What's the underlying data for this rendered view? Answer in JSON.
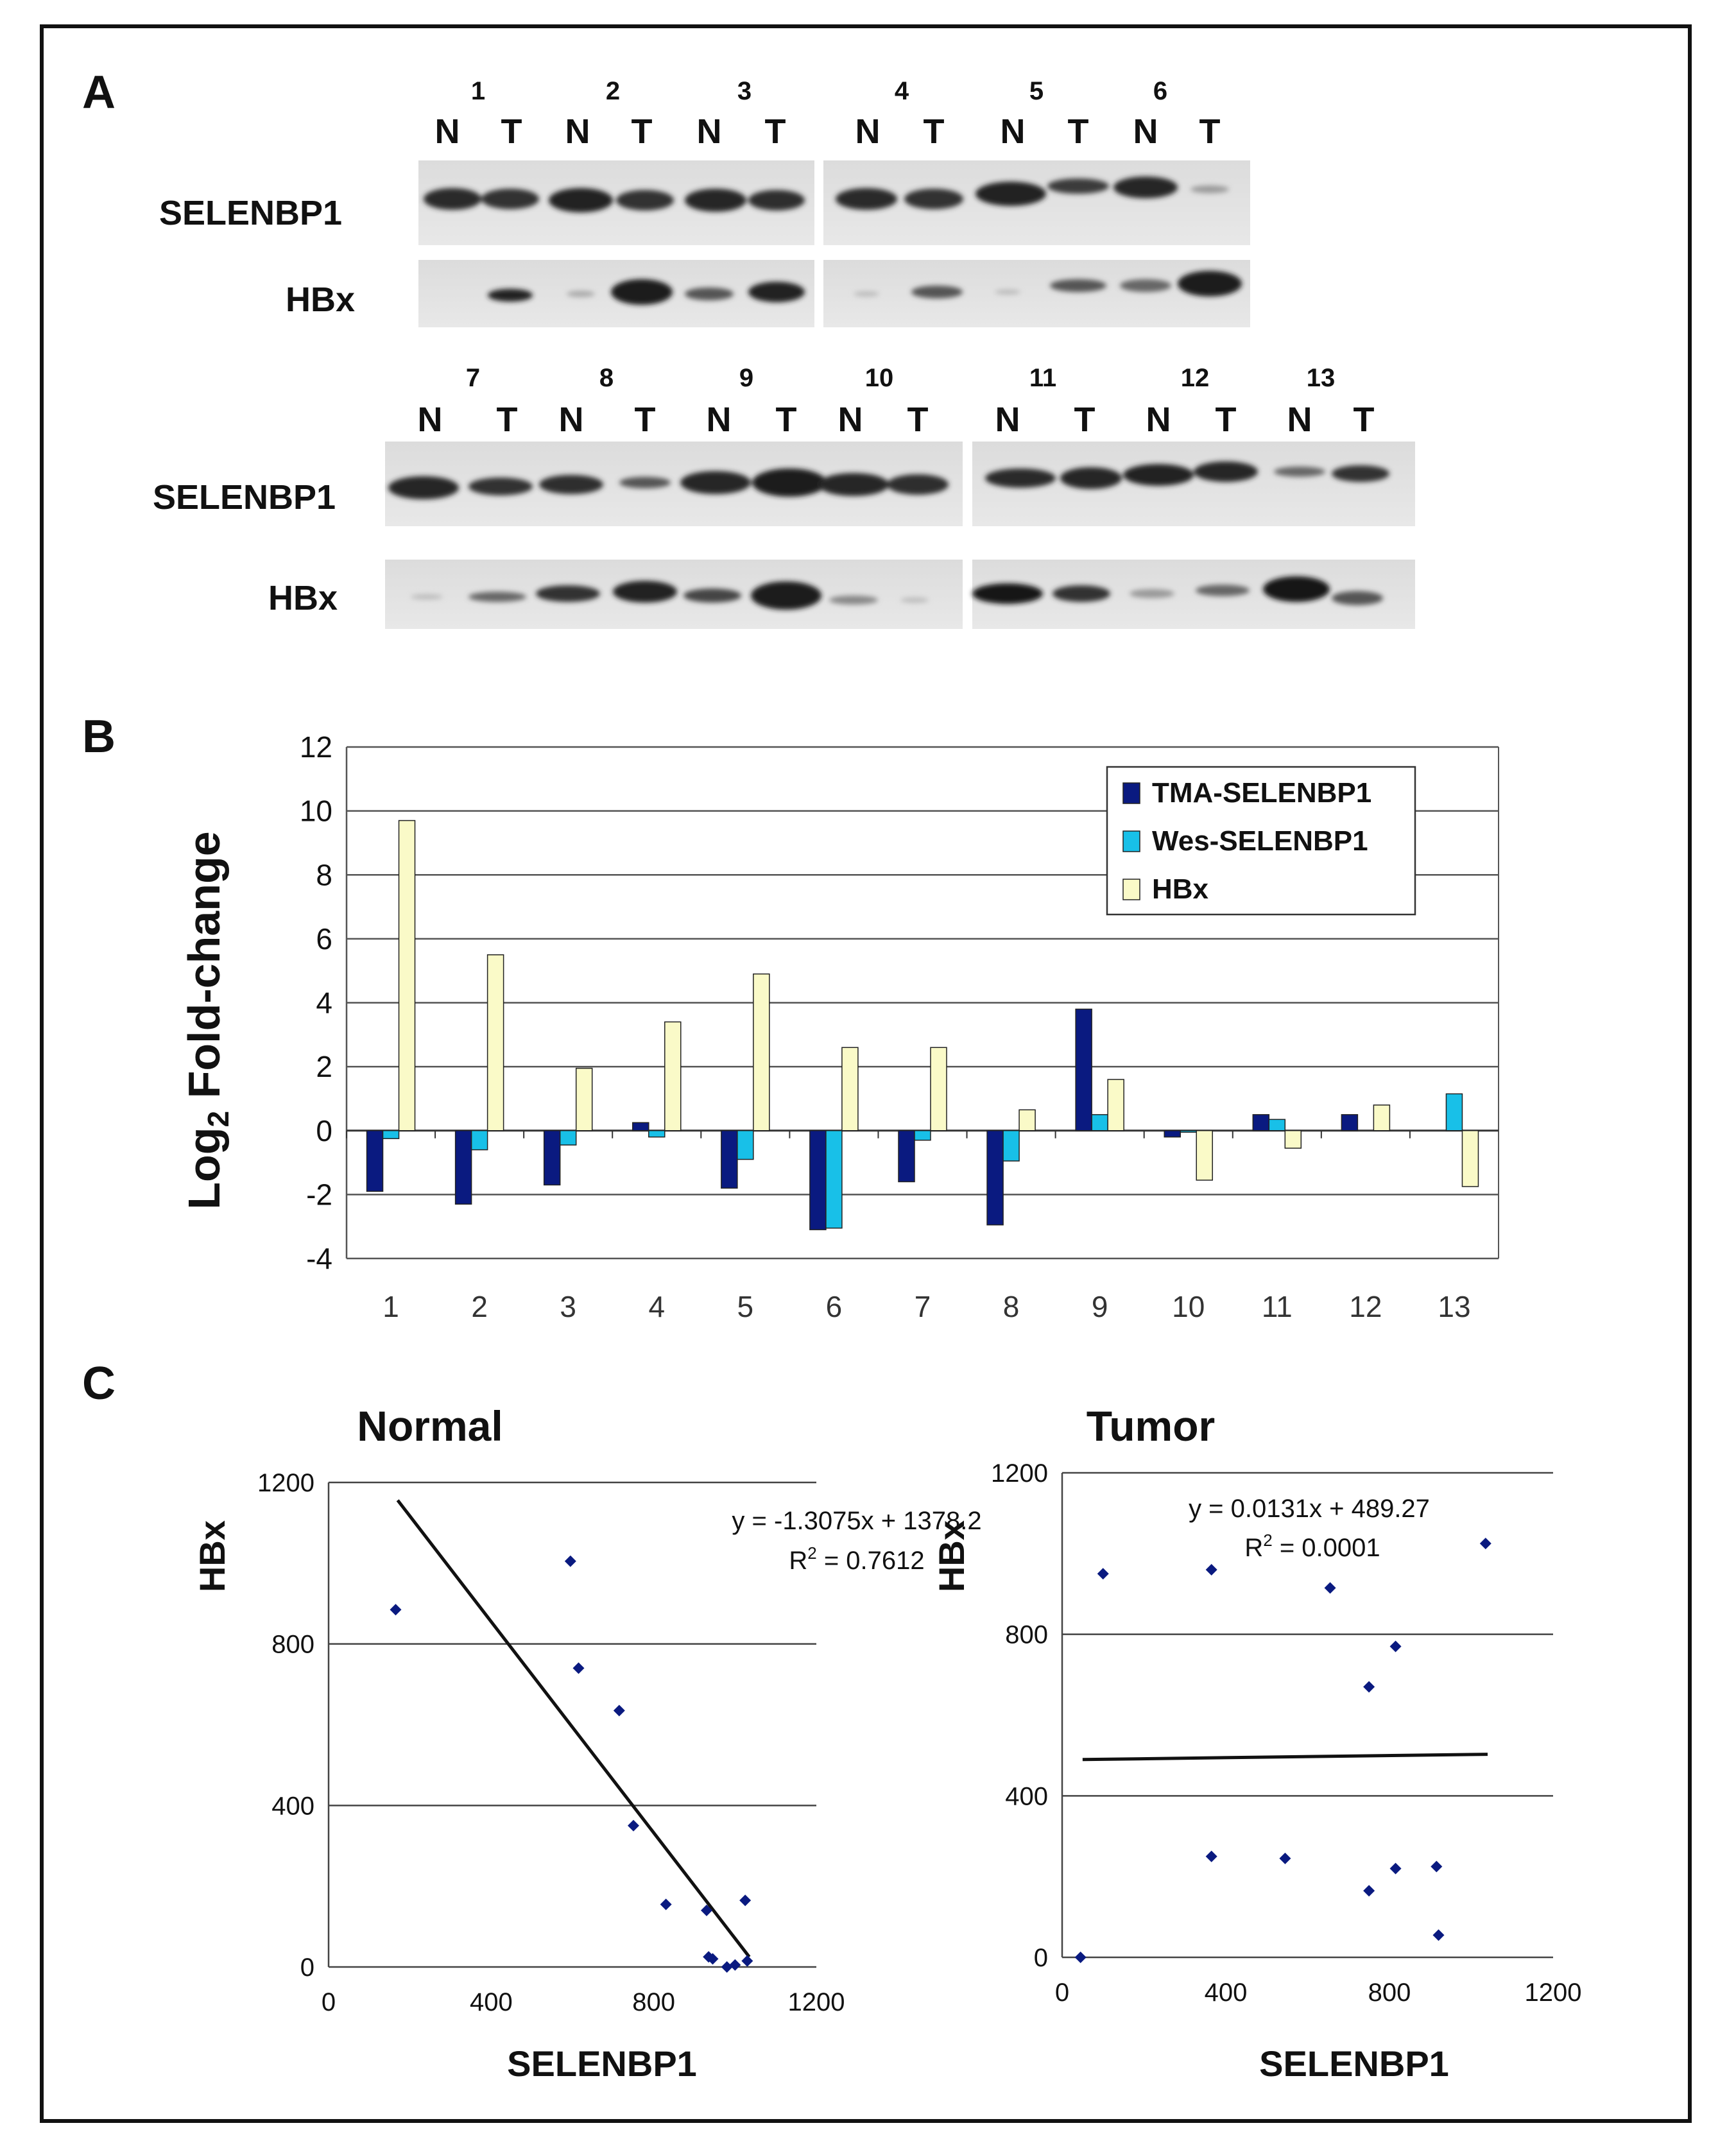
{
  "panel_a": {
    "letter": "A",
    "lane_labels": [
      "N",
      "T"
    ],
    "top_row": {
      "samples": [
        "1",
        "2",
        "3",
        "4",
        "5",
        "6"
      ],
      "row_labels": [
        "SELENBP1",
        "HBx"
      ]
    },
    "bottom_row": {
      "samples": [
        "7",
        "8",
        "9",
        "10",
        "11",
        "12",
        "13"
      ],
      "row_labels": [
        "SELENBP1",
        "HBx"
      ]
    }
  },
  "panel_b": {
    "letter": "B",
    "ylabel_main": "Log",
    "ylabel_sub": "2",
    "ylabel_rest": " Fold-change"
  },
  "panel_c": {
    "letter": "C",
    "normal": {
      "title": "Normal",
      "ylabel": "HBx",
      "xlabel": "SELENBP1",
      "equation": "y = -1.3075x + 1378.2",
      "r2_prefix": "R",
      "r2_sup": "2",
      "r2_value": " = 0.7612"
    },
    "tumor": {
      "title": "Tumor",
      "ylabel": "HBx",
      "xlabel": "SELENBP1",
      "equation": "y = 0.0131x + 489.27",
      "r2_prefix": "R",
      "r2_sup": "2",
      "r2_value": " = 0.0001"
    }
  },
  "colors": {
    "tma": "#0a1a80",
    "wes": "#18c0e8",
    "hbx": "#fafac8",
    "scatter": "#0a1a80",
    "grid": "#555555"
  },
  "chart_data": [
    {
      "type": "bar",
      "categories": [
        "1",
        "2",
        "3",
        "4",
        "5",
        "6",
        "7",
        "8",
        "9",
        "10",
        "11",
        "12",
        "13"
      ],
      "series": [
        {
          "name": "TMA-SELENBP1",
          "values": [
            -1.9,
            -2.3,
            -1.7,
            0.25,
            -1.8,
            -3.1,
            -1.6,
            -2.95,
            3.8,
            -0.2,
            0.5,
            0.5,
            0.0
          ]
        },
        {
          "name": "Wes-SELENBP1",
          "values": [
            -0.25,
            -0.6,
            -0.45,
            -0.2,
            -0.9,
            -3.05,
            -0.3,
            -0.95,
            0.5,
            -0.05,
            0.35,
            0.0,
            1.15
          ]
        },
        {
          "name": "HBx",
          "values": [
            9.7,
            5.5,
            1.95,
            3.4,
            4.9,
            2.6,
            2.6,
            0.65,
            1.6,
            -1.55,
            -0.55,
            0.8,
            -1.75
          ]
        }
      ],
      "ylim": [
        -4,
        12
      ],
      "yticks": [
        -4,
        -2,
        0,
        2,
        4,
        6,
        8,
        10,
        12
      ],
      "grid": true,
      "legend": "top-right"
    },
    {
      "type": "scatter",
      "title": "Normal",
      "xlabel": "SELENBP1",
      "ylabel": "HBx",
      "xlim": [
        0,
        1200
      ],
      "ylim": [
        0,
        1200
      ],
      "xticks": [
        0,
        400,
        800,
        1200
      ],
      "yticks": [
        0,
        400,
        800,
        1200
      ],
      "points": [
        [
          165,
          885
        ],
        [
          595,
          1005
        ],
        [
          615,
          740
        ],
        [
          715,
          635
        ],
        [
          750,
          350
        ],
        [
          830,
          155
        ],
        [
          930,
          140
        ],
        [
          935,
          25
        ],
        [
          945,
          20
        ],
        [
          980,
          0
        ],
        [
          1000,
          5
        ],
        [
          1025,
          165
        ],
        [
          1030,
          15
        ]
      ],
      "trendline": {
        "slope": -1.3075,
        "intercept": 1378.2,
        "x_from": 170,
        "x_to": 1035
      },
      "annotation": "y = -1.3075x + 1378.2; R2 = 0.7612",
      "grid": true
    },
    {
      "type": "scatter",
      "title": "Tumor",
      "xlabel": "SELENBP1",
      "ylabel": "HBx",
      "xlim": [
        0,
        1200
      ],
      "ylim": [
        0,
        1200
      ],
      "xticks": [
        0,
        400,
        800,
        1200
      ],
      "yticks": [
        0,
        400,
        800,
        1200
      ],
      "points": [
        [
          45,
          0
        ],
        [
          100,
          950
        ],
        [
          365,
          960
        ],
        [
          365,
          250
        ],
        [
          545,
          245
        ],
        [
          655,
          915
        ],
        [
          750,
          670
        ],
        [
          750,
          165
        ],
        [
          815,
          770
        ],
        [
          815,
          220
        ],
        [
          915,
          225
        ],
        [
          920,
          55
        ],
        [
          1035,
          1025
        ]
      ],
      "trendline": {
        "slope": 0.0131,
        "intercept": 489.27,
        "x_from": 50,
        "x_to": 1040
      },
      "annotation": "y = 0.0131x + 489.27; R2 = 0.0001",
      "grid": true
    }
  ]
}
